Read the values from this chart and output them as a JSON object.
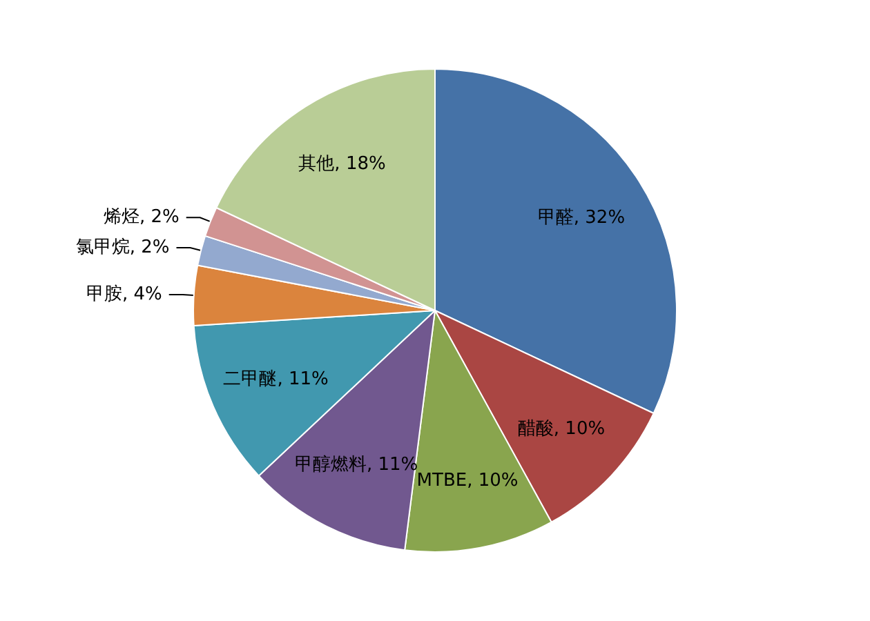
{
  "chart_data": {
    "type": "pie",
    "categories": [
      "甲醛",
      "醋酸",
      "MTBE",
      "甲醇燃料",
      "二甲醚",
      "甲胺",
      "氯甲烷",
      "烯烃",
      "其他"
    ],
    "values": [
      32,
      10,
      10,
      11,
      11,
      4,
      2,
      2,
      18
    ],
    "colors": [
      "#4572a7",
      "#aa4643",
      "#89a54e",
      "#71588f",
      "#4198af",
      "#db843d",
      "#93a9cf",
      "#d19392",
      "#b9cd96"
    ],
    "value_labels": [
      "32%",
      "10%",
      "10%",
      "11%",
      "11%",
      "4%",
      "2%",
      "2%",
      "18%"
    ],
    "legend": false
  }
}
